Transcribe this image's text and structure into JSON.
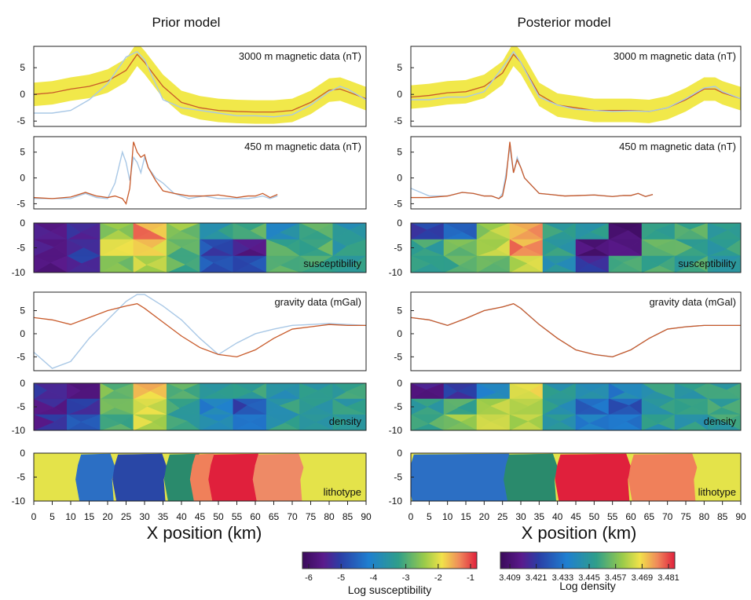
{
  "figure": {
    "columns": [
      {
        "title": "Prior model",
        "xlabel": "X position (km)"
      },
      {
        "title": "Posterior model",
        "xlabel": "X position (km)"
      }
    ],
    "x_ticks": [
      0,
      5,
      10,
      15,
      20,
      25,
      30,
      35,
      40,
      45,
      50,
      55,
      60,
      65,
      70,
      75,
      80,
      85,
      90
    ],
    "colors": {
      "band": "#f1e84a",
      "observed": "#a9c8e6",
      "model": "#c85a2a",
      "litho_yellow": "#e4e34a",
      "litho_blue": "#2c6fc4",
      "litho_navy": "#2947a6",
      "litho_green": "#2a8a6c",
      "litho_orange": "#f0805a",
      "litho_red": "#e0203c",
      "litho_salmon": "#ee8a66"
    }
  },
  "panel_labels": {
    "mag3000": "3000 m magnetic data (nT)",
    "mag450": "450 m magnetic data (nT)",
    "susceptibility": "susceptibility",
    "gravity": "gravity data (mGal)",
    "density": "density",
    "lithotype": "lithotype"
  },
  "colorbars": [
    {
      "label": "Log susceptibility",
      "ticks": [
        "-6",
        "-5",
        "-4",
        "-3",
        "-2",
        "-1"
      ]
    },
    {
      "label": "Log density",
      "ticks": [
        "3.409",
        "3.421",
        "3.433",
        "3.445",
        "3.457",
        "3.469",
        "3.481"
      ]
    }
  ],
  "chart_data": [
    {
      "type": "line",
      "column": "Prior model",
      "panel": "3000 m magnetic data (nT)",
      "xlim": [
        0,
        90
      ],
      "ylim": [
        -6,
        9
      ],
      "yticks": [
        5,
        0,
        -5
      ],
      "x": [
        0,
        5,
        10,
        15,
        20,
        25,
        28,
        30,
        35,
        40,
        45,
        50,
        55,
        60,
        65,
        70,
        75,
        80,
        83,
        85,
        90
      ],
      "series": [
        {
          "role": "band",
          "values": [
            0,
            0.3,
            1,
            1.5,
            2.5,
            4.5,
            7.5,
            6,
            1.5,
            -1.5,
            -2.5,
            -3,
            -3.2,
            -3.3,
            -3.3,
            -3,
            -1.5,
            0.8,
            1,
            0.5,
            -0.8
          ],
          "halfwidth": 2.2
        },
        {
          "role": "model",
          "values": [
            0,
            0.3,
            1,
            1.5,
            2.5,
            4.5,
            7.5,
            6,
            1.5,
            -1.5,
            -2.5,
            -3,
            -3.2,
            -3.3,
            -3.3,
            -3,
            -1.5,
            0.8,
            1,
            0.5,
            -0.8
          ]
        },
        {
          "role": "observed",
          "values": [
            -3.5,
            -3.5,
            -3,
            -1,
            2,
            7,
            8,
            6.5,
            -1,
            -2.5,
            -3,
            -3.5,
            -4,
            -4,
            -4.2,
            -3.8,
            -2,
            0.5,
            1.5,
            1,
            -1
          ]
        }
      ]
    },
    {
      "type": "line",
      "column": "Posterior model",
      "panel": "3000 m magnetic data (nT)",
      "xlim": [
        0,
        90
      ],
      "ylim": [
        -6,
        9
      ],
      "yticks": [
        5,
        0,
        -5
      ],
      "x": [
        0,
        5,
        10,
        15,
        20,
        25,
        28,
        30,
        35,
        40,
        45,
        50,
        55,
        60,
        65,
        70,
        75,
        80,
        83,
        85,
        90
      ],
      "series": [
        {
          "role": "band",
          "values": [
            -0.5,
            -0.2,
            0.3,
            0.5,
            1.5,
            4,
            7.5,
            6,
            0,
            -2,
            -2.5,
            -3,
            -3,
            -3,
            -3.2,
            -2.5,
            -1,
            1,
            1,
            0.3,
            -0.8
          ],
          "halfwidth": 2.2
        },
        {
          "role": "model",
          "values": [
            -0.5,
            -0.2,
            0.3,
            0.5,
            1.5,
            4,
            7.5,
            6,
            0,
            -2,
            -2.5,
            -3,
            -3,
            -3,
            -3.2,
            -2.5,
            -1,
            1,
            1,
            0.3,
            -0.8
          ]
        },
        {
          "role": "observed",
          "values": [
            -1,
            -1,
            -0.5,
            -0.5,
            0.5,
            5,
            8,
            6,
            -0.5,
            -2,
            -2.8,
            -3,
            -3.2,
            -3.1,
            -3.2,
            -2.5,
            -0.8,
            1.2,
            1.5,
            0.5,
            -0.8
          ]
        }
      ]
    },
    {
      "type": "line",
      "column": "Prior model",
      "panel": "450 m magnetic data (nT)",
      "xlim": [
        0,
        90
      ],
      "ylim": [
        -6,
        8
      ],
      "yticks": [
        5,
        0,
        -5
      ],
      "x": [
        0,
        5,
        10,
        14,
        17,
        20,
        22,
        24,
        25,
        26,
        27,
        28,
        29,
        30,
        31,
        33,
        35,
        38,
        42,
        46,
        50,
        55,
        58,
        60,
        62,
        64,
        66
      ],
      "series": [
        {
          "role": "observed",
          "values": [
            -4,
            -4,
            -4,
            -3,
            -3.8,
            -4,
            -1,
            5,
            3,
            -0.5,
            4,
            3,
            1,
            4,
            2,
            0,
            -1,
            -3,
            -4,
            -3.5,
            -4,
            -4,
            -4,
            -3.8,
            -3.5,
            -4,
            -3.5
          ]
        },
        {
          "role": "model",
          "values": [
            -3.8,
            -4,
            -3.7,
            -2.8,
            -3.5,
            -3.8,
            -3.5,
            -4,
            -5,
            -2,
            7,
            5,
            4,
            4.5,
            2,
            -0.5,
            -2.5,
            -3,
            -3.5,
            -3.5,
            -3.3,
            -3.8,
            -3.5,
            -3.5,
            -3,
            -3.8,
            -3.2
          ]
        }
      ]
    },
    {
      "type": "line",
      "column": "Posterior model",
      "panel": "450 m magnetic data (nT)",
      "xlim": [
        0,
        90
      ],
      "ylim": [
        -6,
        8
      ],
      "yticks": [
        5,
        0,
        -5
      ],
      "x": [
        0,
        5,
        10,
        14,
        17,
        20,
        22,
        24,
        25,
        26,
        27,
        28,
        29,
        30,
        31,
        33,
        35,
        38,
        42,
        46,
        50,
        55,
        58,
        60,
        62,
        64,
        66
      ],
      "series": [
        {
          "role": "observed",
          "values": [
            -2,
            -3.5,
            -3.5,
            -2.8,
            -3,
            -3.5,
            -3.5,
            -4,
            -3,
            1,
            6,
            1,
            4,
            2,
            0,
            -1.5,
            -3,
            -3.2,
            -3.5,
            -3.4,
            -3.3,
            -3.6,
            -3.4,
            -3.4,
            -3,
            -3.6,
            -3.2
          ]
        },
        {
          "role": "model",
          "values": [
            -3.8,
            -3.8,
            -3.5,
            -2.8,
            -3,
            -3.5,
            -3.5,
            -4,
            -3.5,
            0,
            7,
            1,
            3.5,
            2,
            0,
            -1.5,
            -3,
            -3.2,
            -3.5,
            -3.4,
            -3.3,
            -3.6,
            -3.4,
            -3.4,
            -3,
            -3.6,
            -3.2
          ]
        }
      ]
    },
    {
      "type": "line",
      "column": "Prior model",
      "panel": "gravity data (mGal)",
      "xlim": [
        0,
        90
      ],
      "ylim": [
        -8,
        9
      ],
      "yticks": [
        5,
        0,
        -5
      ],
      "x": [
        0,
        5,
        10,
        15,
        20,
        25,
        28,
        30,
        35,
        40,
        45,
        50,
        55,
        60,
        65,
        70,
        75,
        80,
        85,
        90
      ],
      "series": [
        {
          "role": "observed",
          "values": [
            -4,
            -7.5,
            -6,
            -1,
            3,
            7,
            8.5,
            8.5,
            6,
            3,
            -1,
            -4.5,
            -2,
            0,
            1,
            1.8,
            2,
            2.2,
            2,
            1.8
          ]
        },
        {
          "role": "model",
          "values": [
            3.5,
            3,
            2,
            3.5,
            5,
            6,
            6.5,
            5.5,
            2.5,
            -0.5,
            -3,
            -4.5,
            -5,
            -3.5,
            -1,
            1,
            1.5,
            2,
            1.8,
            1.8
          ]
        }
      ]
    },
    {
      "type": "line",
      "column": "Posterior model",
      "panel": "gravity data (mGal)",
      "xlim": [
        0,
        90
      ],
      "ylim": [
        -8,
        9
      ],
      "yticks": [
        5,
        0,
        -5
      ],
      "x": [
        0,
        5,
        10,
        15,
        20,
        25,
        28,
        30,
        35,
        40,
        45,
        50,
        55,
        60,
        65,
        70,
        75,
        80,
        85,
        90
      ],
      "series": [
        {
          "role": "observed",
          "values": [
            3.5,
            3,
            1.8,
            3.3,
            5,
            5.8,
            6.5,
            5.5,
            2,
            -1,
            -3.5,
            -4.5,
            -5,
            -3.5,
            -1,
            1,
            1.5,
            1.8,
            1.8,
            1.8
          ]
        },
        {
          "role": "model",
          "values": [
            3.5,
            3,
            1.8,
            3.3,
            5,
            5.8,
            6.5,
            5.5,
            2,
            -1,
            -3.5,
            -4.5,
            -5,
            -3.5,
            -1,
            1,
            1.5,
            1.8,
            1.8,
            1.8
          ]
        }
      ]
    },
    {
      "type": "heatmap",
      "column": "Prior model",
      "panel": "susceptibility",
      "xlim": [
        0,
        90
      ],
      "ylim": [
        -10,
        0
      ],
      "yticks": [
        0,
        -5,
        -10
      ],
      "colorbar": "Log susceptibility",
      "range": [
        -6,
        -1
      ],
      "x": [
        0,
        9,
        18,
        27,
        36,
        45,
        54,
        63,
        72,
        81
      ],
      "rows": [
        [
          -5.3,
          -5.2,
          -2.5,
          -1.6,
          -2.7,
          -3.5,
          -3.0,
          -3.8,
          -3.0,
          -3.5
        ],
        [
          -5.5,
          -5.0,
          -2.3,
          -1.8,
          -3.0,
          -4.8,
          -5.4,
          -3.0,
          -3.0,
          -3.4
        ],
        [
          -5.4,
          -5.0,
          -2.6,
          -2.4,
          -3.0,
          -4.5,
          -4.8,
          -3.1,
          -3.2,
          -3.5
        ]
      ]
    },
    {
      "type": "heatmap",
      "column": "Posterior model",
      "panel": "susceptibility",
      "xlim": [
        0,
        90
      ],
      "ylim": [
        -10,
        0
      ],
      "yticks": [
        0,
        -5,
        -10
      ],
      "colorbar": "Log susceptibility",
      "range": [
        -6,
        -1
      ],
      "x": [
        0,
        9,
        18,
        27,
        36,
        45,
        54,
        63,
        72,
        81
      ],
      "rows": [
        [
          -5.0,
          -4.5,
          -2.5,
          -1.5,
          -3.2,
          -3.5,
          -5.8,
          -3.2,
          -3.0,
          -3.2
        ],
        [
          -3.2,
          -2.8,
          -2.4,
          -1.6,
          -3.4,
          -5.6,
          -5.5,
          -3.0,
          -3.1,
          -3.3
        ],
        [
          -3.1,
          -3.0,
          -2.8,
          -2.2,
          -3.5,
          -5.2,
          -3.3,
          -3.0,
          -3.2,
          -3.3
        ]
      ]
    },
    {
      "type": "heatmap",
      "column": "Prior model",
      "panel": "density",
      "xlim": [
        0,
        90
      ],
      "ylim": [
        -10,
        0
      ],
      "yticks": [
        0,
        -5,
        -10
      ],
      "colorbar": "Log density",
      "range": [
        3.409,
        3.481
      ],
      "x": [
        0,
        9,
        18,
        27,
        36,
        45,
        54,
        63,
        72,
        81
      ],
      "rows": [
        [
          3.42,
          3.418,
          3.455,
          3.468,
          3.452,
          3.448,
          3.449,
          3.445,
          3.448,
          3.449
        ],
        [
          3.418,
          3.422,
          3.455,
          3.466,
          3.448,
          3.438,
          3.428,
          3.446,
          3.447,
          3.448
        ],
        [
          3.421,
          3.428,
          3.452,
          3.462,
          3.447,
          3.44,
          3.432,
          3.446,
          3.447,
          3.448
        ]
      ]
    },
    {
      "type": "heatmap",
      "column": "Posterior model",
      "panel": "density",
      "xlim": [
        0,
        90
      ],
      "ylim": [
        -10,
        0
      ],
      "yticks": [
        0,
        -5,
        -10
      ],
      "colorbar": "Log density",
      "range": [
        3.409,
        3.481
      ],
      "x": [
        0,
        9,
        18,
        27,
        36,
        45,
        54,
        63,
        72,
        81
      ],
      "rows": [
        [
          3.418,
          3.425,
          3.44,
          3.468,
          3.445,
          3.44,
          3.438,
          3.446,
          3.447,
          3.448
        ],
        [
          3.448,
          3.452,
          3.46,
          3.464,
          3.445,
          3.432,
          3.43,
          3.446,
          3.447,
          3.448
        ],
        [
          3.452,
          3.458,
          3.462,
          3.46,
          3.444,
          3.435,
          3.436,
          3.446,
          3.447,
          3.448
        ]
      ]
    },
    {
      "type": "heatmap",
      "column": "Prior model",
      "panel": "lithotype",
      "xlim": [
        0,
        90
      ],
      "ylim": [
        -10,
        0
      ],
      "yticks": [
        0,
        -5,
        -10
      ],
      "units": [
        {
          "color": "litho_yellow",
          "x_from": 0,
          "x_to": 90
        },
        {
          "color": "litho_blue",
          "x_from": 12,
          "x_to": 22
        },
        {
          "color": "litho_navy",
          "x_from": 22,
          "x_to": 36
        },
        {
          "color": "litho_green",
          "x_from": 36,
          "x_to": 46
        },
        {
          "color": "litho_orange",
          "x_from": 43,
          "x_to": 50
        },
        {
          "color": "litho_red",
          "x_from": 48,
          "x_to": 62
        },
        {
          "color": "litho_salmon",
          "x_from": 60,
          "x_to": 73
        }
      ]
    },
    {
      "type": "heatmap",
      "column": "Posterior model",
      "panel": "lithotype",
      "xlim": [
        0,
        90
      ],
      "ylim": [
        -10,
        0
      ],
      "yticks": [
        0,
        -5,
        -10
      ],
      "units": [
        {
          "color": "litho_yellow",
          "x_from": 0,
          "x_to": 90
        },
        {
          "color": "litho_blue",
          "x_from": 0,
          "x_to": 28
        },
        {
          "color": "litho_green",
          "x_from": 26,
          "x_to": 40
        },
        {
          "color": "litho_red",
          "x_from": 40,
          "x_to": 60
        },
        {
          "color": "litho_orange",
          "x_from": 60,
          "x_to": 78
        }
      ]
    }
  ]
}
